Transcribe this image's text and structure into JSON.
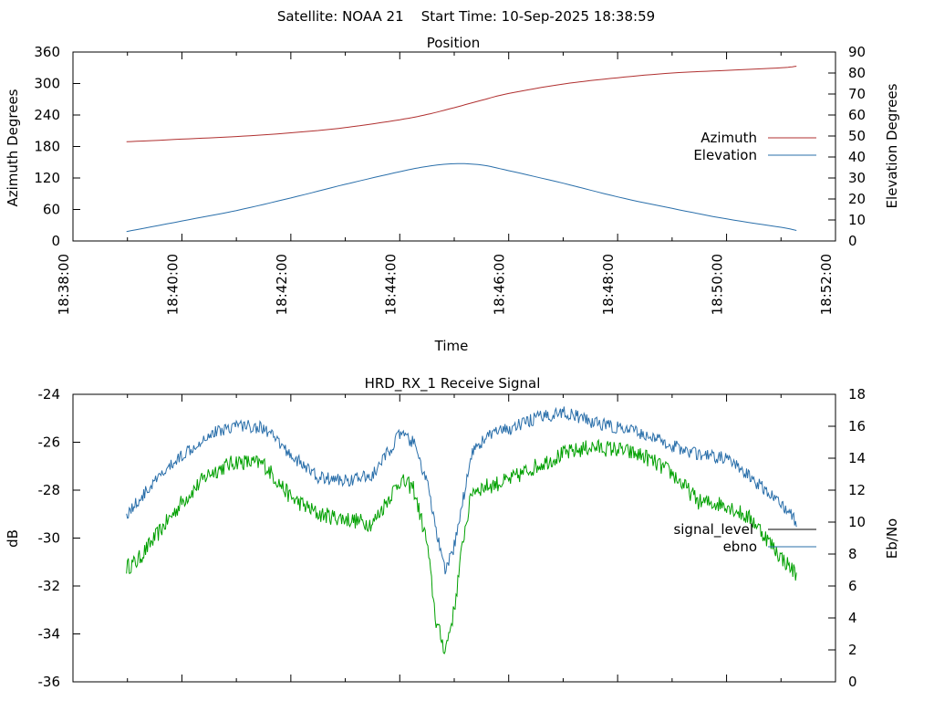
{
  "header": {
    "title": "Satellite: NOAA 21    Start Time: 10-Sep-2025 18:38:59"
  },
  "chart_data": [
    {
      "type": "line",
      "title": "Position",
      "xlabel": "Time",
      "ylabel_left": "Azimuth Degrees",
      "ylabel_right": "Elevation Degrees",
      "x_ticks": [
        "18:38:00",
        "18:40:00",
        "18:42:00",
        "18:44:00",
        "18:46:00",
        "18:48:00",
        "18:50:00",
        "18:52:00"
      ],
      "xlim": [
        "18:38:00",
        "18:52:00"
      ],
      "ylim_left": [
        0,
        360
      ],
      "y_ticks_left": [
        0,
        60,
        120,
        180,
        240,
        300,
        360
      ],
      "ylim_right": [
        0,
        90
      ],
      "y_ticks_right": [
        0,
        10,
        20,
        30,
        40,
        50,
        60,
        70,
        80,
        90
      ],
      "grid": false,
      "legend_position": "right",
      "series": [
        {
          "name": "Azimuth",
          "axis": "left",
          "color": "#b03030",
          "x": [
            "18:38:59",
            "18:40:00",
            "18:41:00",
            "18:42:00",
            "18:43:00",
            "18:44:00",
            "18:44:30",
            "18:45:00",
            "18:45:30",
            "18:46:00",
            "18:47:00",
            "18:48:00",
            "18:49:00",
            "18:50:00",
            "18:51:00",
            "18:51:17"
          ],
          "y": [
            189,
            194,
            199,
            206,
            216,
            231,
            241,
            254,
            268,
            281,
            299,
            311,
            320,
            325,
            330,
            333
          ]
        },
        {
          "name": "Elevation",
          "axis": "right",
          "color": "#2a6faa",
          "x": [
            "18:38:59",
            "18:40:00",
            "18:41:00",
            "18:42:00",
            "18:43:00",
            "18:44:00",
            "18:44:30",
            "18:45:00",
            "18:45:30",
            "18:46:00",
            "18:47:00",
            "18:48:00",
            "18:49:00",
            "18:50:00",
            "18:51:00",
            "18:51:17"
          ],
          "y": [
            4.5,
            9.5,
            14.5,
            20.5,
            27,
            33,
            35.5,
            36.8,
            36.2,
            33.5,
            27.5,
            21,
            15.5,
            10.5,
            6.5,
            5
          ]
        }
      ]
    },
    {
      "type": "line",
      "title": "HRD_RX_1 Receive Signal",
      "ylabel_left": "dB",
      "ylabel_right": "Eb/No",
      "ylim_left": [
        -36,
        -24
      ],
      "y_ticks_left": [
        -36,
        -34,
        -32,
        -30,
        -28,
        -26,
        -24
      ],
      "ylim_right": [
        0,
        18
      ],
      "y_ticks_right": [
        0,
        2,
        4,
        6,
        8,
        10,
        12,
        14,
        16,
        18
      ],
      "xlim": [
        "18:38:00",
        "18:52:00"
      ],
      "grid": false,
      "legend_position": "right",
      "series": [
        {
          "name": "signal_level",
          "axis": "left",
          "color": "#00a000",
          "x": [
            "18:38:59",
            "18:39:10",
            "18:39:30",
            "18:40:00",
            "18:40:30",
            "18:41:00",
            "18:41:30",
            "18:42:00",
            "18:42:30",
            "18:43:00",
            "18:43:30",
            "18:44:00",
            "18:44:15",
            "18:44:30",
            "18:44:40",
            "18:44:50",
            "18:45:00",
            "18:45:10",
            "18:45:20",
            "18:45:40",
            "18:46:00",
            "18:46:30",
            "18:47:00",
            "18:47:30",
            "18:48:00",
            "18:48:30",
            "18:49:00",
            "18:49:30",
            "18:50:00",
            "18:50:30",
            "18:51:00",
            "18:51:17"
          ],
          "y": [
            -31.2,
            -31.0,
            -30.0,
            -28.5,
            -27.3,
            -26.8,
            -26.9,
            -28.3,
            -29.0,
            -29.2,
            -29.4,
            -27.6,
            -27.9,
            -30.2,
            -33.5,
            -34.7,
            -33.0,
            -30.0,
            -28.0,
            -27.8,
            -27.6,
            -27.0,
            -26.5,
            -26.2,
            -26.3,
            -26.6,
            -27.3,
            -28.5,
            -28.6,
            -29.3,
            -30.8,
            -31.5
          ]
        },
        {
          "name": "ebno",
          "axis": "right",
          "color": "#2a6faa",
          "x": [
            "18:38:59",
            "18:39:10",
            "18:39:30",
            "18:40:00",
            "18:40:30",
            "18:41:00",
            "18:41:30",
            "18:42:00",
            "18:42:30",
            "18:43:00",
            "18:43:30",
            "18:44:00",
            "18:44:15",
            "18:44:30",
            "18:44:40",
            "18:44:50",
            "18:45:00",
            "18:45:10",
            "18:45:20",
            "18:45:40",
            "18:46:00",
            "18:46:30",
            "18:47:00",
            "18:47:30",
            "18:48:00",
            "18:48:30",
            "18:49:00",
            "18:49:30",
            "18:50:00",
            "18:50:30",
            "18:51:00",
            "18:51:17"
          ],
          "y": [
            10.5,
            11.2,
            12.5,
            14.2,
            15.5,
            16.1,
            15.9,
            14.2,
            12.8,
            12.6,
            12.9,
            15.5,
            15.0,
            12.5,
            9.5,
            6.8,
            8.5,
            11.5,
            14.5,
            15.5,
            15.8,
            16.5,
            16.9,
            16.3,
            15.9,
            15.5,
            14.8,
            14.2,
            14.0,
            12.6,
            11.2,
            10.0
          ]
        }
      ]
    }
  ]
}
